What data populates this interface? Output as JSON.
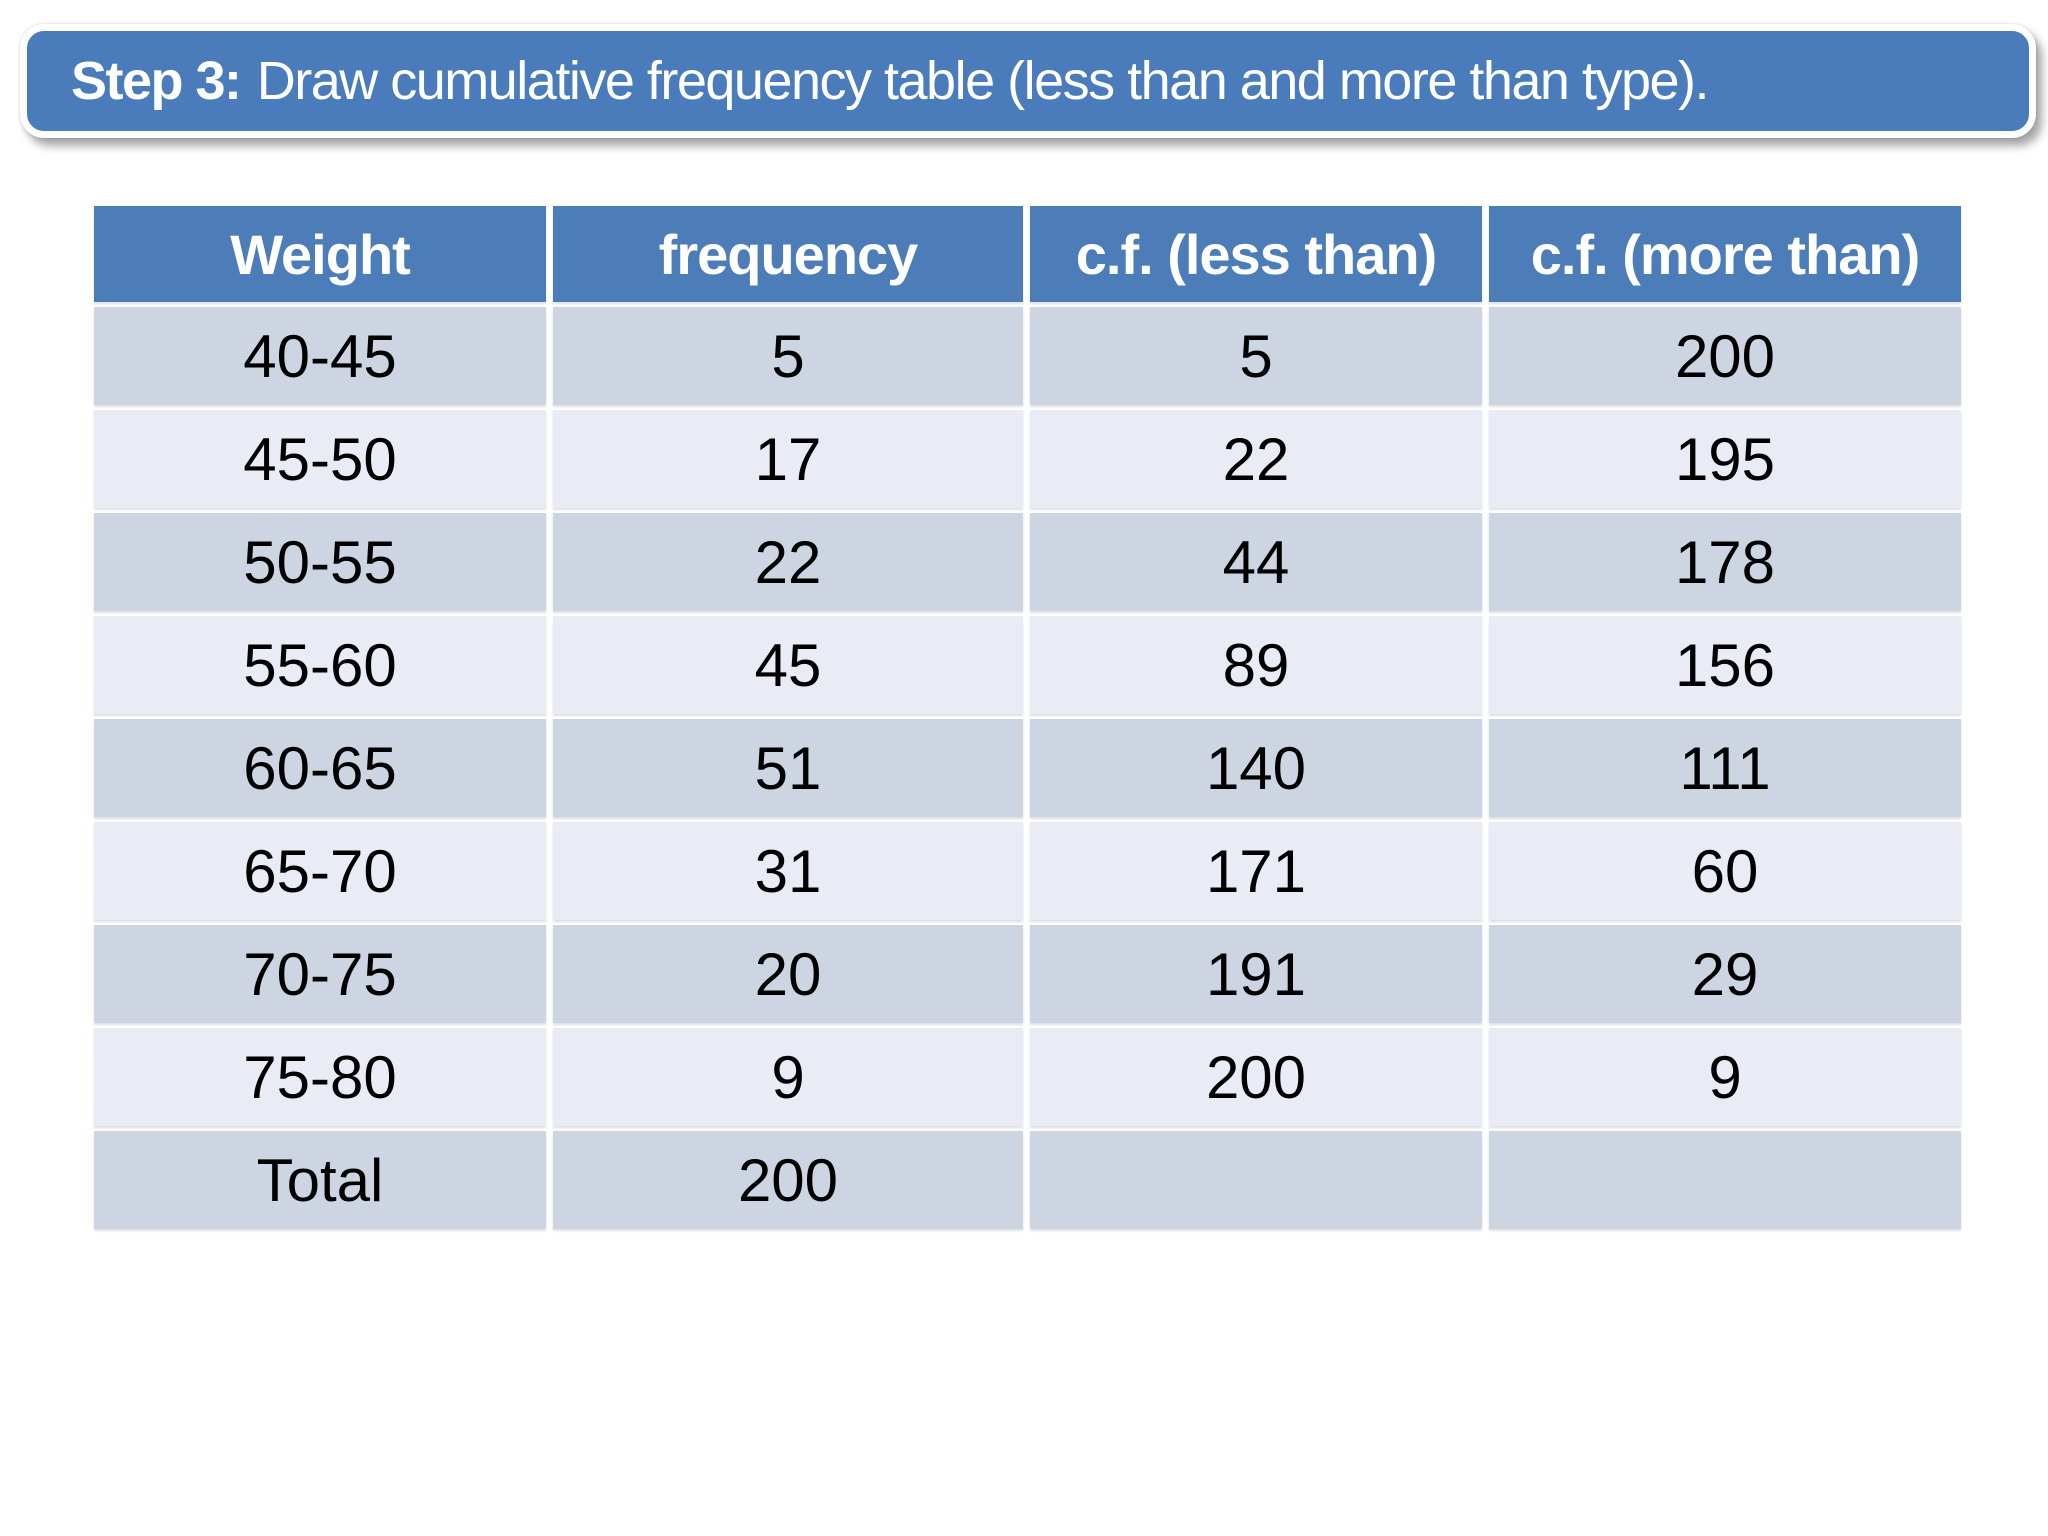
{
  "title": {
    "prefix": "Step 3:",
    "rest": "Draw cumulative frequency table (less than and more than type)."
  },
  "table": {
    "headers": [
      "Weight",
      "frequency",
      "c.f. (less than)",
      "c.f. (more than)"
    ],
    "rows": [
      [
        "40-45",
        "5",
        "5",
        "200"
      ],
      [
        "45-50",
        "17",
        "22",
        "195"
      ],
      [
        "50-55",
        "22",
        "44",
        "178"
      ],
      [
        "55-60",
        "45",
        "89",
        "156"
      ],
      [
        "60-65",
        "51",
        "140",
        "111"
      ],
      [
        "65-70",
        "31",
        "171",
        "60"
      ],
      [
        "70-75",
        "20",
        "191",
        "29"
      ],
      [
        "75-80",
        "9",
        "200",
        "9"
      ],
      [
        "Total",
        "200",
        "",
        ""
      ]
    ]
  },
  "colors": {
    "banner_blue": "#4a7cbb",
    "header_blue": "#4d7db8",
    "row_dark": "#cdd5e3",
    "row_light": "#e9ecf4",
    "separator": "#ffffff",
    "title_text": "#ffffff",
    "body_text": "#000000"
  },
  "chart_data": {
    "type": "table",
    "title": "Cumulative frequency table (less than and more than type)",
    "columns": [
      "Weight",
      "frequency",
      "c.f. (less than)",
      "c.f. (more than)"
    ],
    "rows": [
      [
        "40-45",
        5,
        5,
        200
      ],
      [
        "45-50",
        17,
        22,
        195
      ],
      [
        "50-55",
        22,
        44,
        178
      ],
      [
        "55-60",
        45,
        89,
        156
      ],
      [
        "60-65",
        51,
        140,
        111
      ],
      [
        "65-70",
        31,
        171,
        60
      ],
      [
        "70-75",
        20,
        191,
        29
      ],
      [
        "75-80",
        9,
        200,
        9
      ],
      [
        "Total",
        200,
        null,
        null
      ]
    ]
  }
}
